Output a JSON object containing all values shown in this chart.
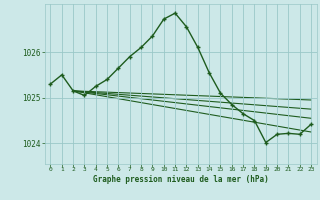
{
  "title": "Graphe pression niveau de la mer (hPa)",
  "background_color": "#cce8e8",
  "grid_color": "#9ac8c8",
  "line_color": "#1e5c1e",
  "xlim": [
    -0.5,
    23.5
  ],
  "ylim": [
    1023.55,
    1027.05
  ],
  "yticks": [
    1024,
    1025,
    1026
  ],
  "xticks": [
    0,
    1,
    2,
    3,
    4,
    5,
    6,
    7,
    8,
    9,
    10,
    11,
    12,
    13,
    14,
    15,
    16,
    17,
    18,
    19,
    20,
    21,
    22,
    23
  ],
  "main_series": {
    "x": [
      0,
      1,
      2,
      3,
      4,
      5,
      6,
      7,
      8,
      9,
      10,
      11,
      12,
      13,
      14,
      15,
      16,
      17,
      18,
      19,
      20,
      21,
      22,
      23
    ],
    "y": [
      1025.3,
      1025.5,
      1025.15,
      1025.05,
      1025.25,
      1025.4,
      1025.65,
      1025.9,
      1026.1,
      1026.35,
      1026.72,
      1026.85,
      1026.55,
      1026.1,
      1025.55,
      1025.1,
      1024.85,
      1024.65,
      1024.5,
      1024.02,
      1024.2,
      1024.22,
      1024.2,
      1024.42
    ]
  },
  "fan_lines": [
    {
      "x": [
        2,
        23
      ],
      "y": [
        1025.15,
        1024.75
      ]
    },
    {
      "x": [
        2,
        23
      ],
      "y": [
        1025.15,
        1024.55
      ]
    },
    {
      "x": [
        2,
        23
      ],
      "y": [
        1025.15,
        1024.25
      ]
    },
    {
      "x": [
        2,
        23
      ],
      "y": [
        1025.15,
        1024.95
      ]
    }
  ]
}
